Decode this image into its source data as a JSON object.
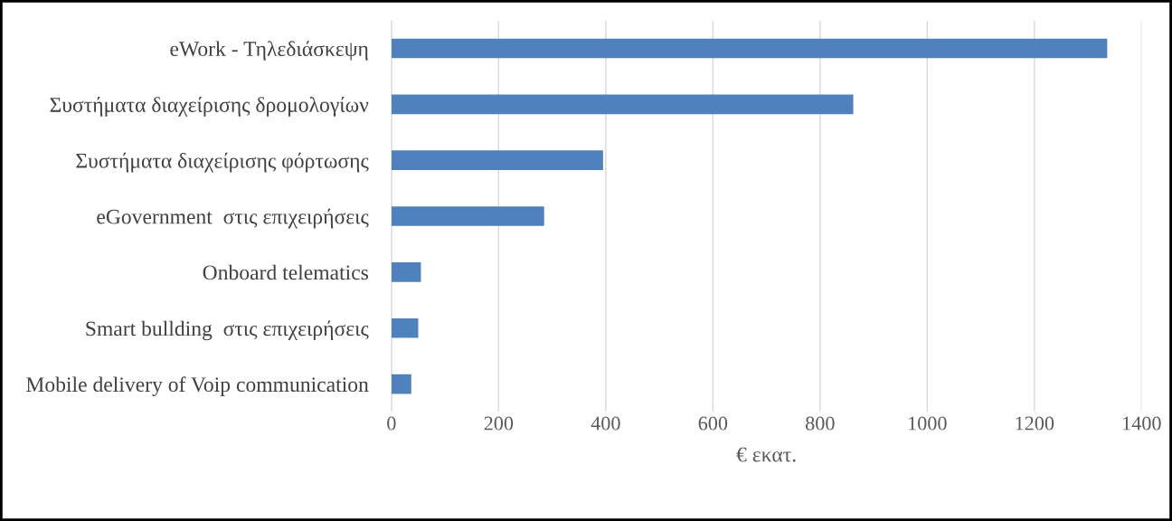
{
  "chart_data": {
    "type": "bar",
    "orientation": "horizontal",
    "xlabel": "€ εκατ.",
    "categories": [
      "eWork - Τηλεδιάσκεψη",
      "Συστήματα διαχείρισης δρομολογίων",
      "Συστήματα διαχείρισης φόρτωσης",
      "eGovernment  στις επιχειρήσεις",
      "Onboard telematics",
      "Smart bullding  στις επιχειρήσεις",
      "Mobile delivery of Voip communication"
    ],
    "values": [
      1336,
      862,
      395,
      285,
      55,
      50,
      37
    ],
    "color": "#4f81bd",
    "xlim": [
      0,
      1400
    ],
    "xticks": [
      0,
      200,
      400,
      600,
      800,
      1000,
      1200,
      1400
    ],
    "grid": "x",
    "legend": false
  }
}
